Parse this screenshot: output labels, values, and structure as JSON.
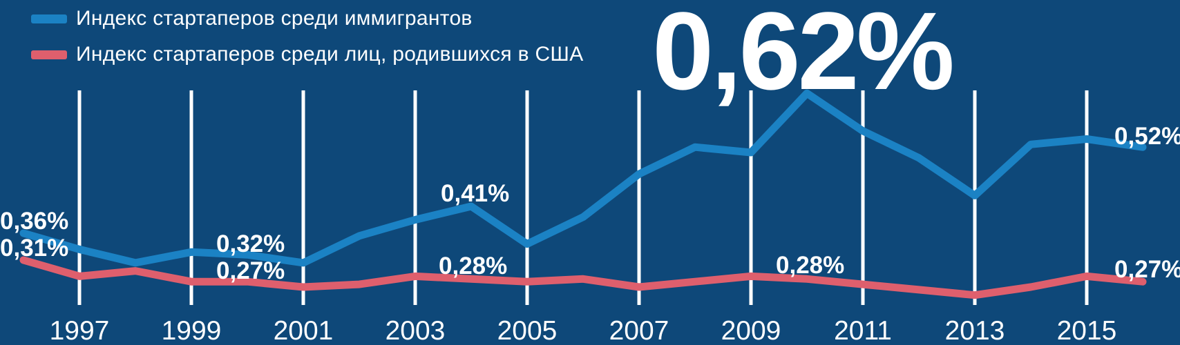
{
  "colors": {
    "background": "#0e4879",
    "gridline": "#ffffff",
    "label_text": "#ffffff",
    "immigrants_line": "#1b82c4",
    "us_born_line": "#de5f6d"
  },
  "legend": {
    "position": "top-left"
  },
  "chart_data": {
    "type": "line",
    "title": "",
    "xlabel": "",
    "ylabel": "",
    "unit": "%",
    "decimal_separator": ",",
    "grid": "vertical-only",
    "legend_position": "top-left",
    "x": [
      1996,
      1997,
      1998,
      1999,
      2000,
      2001,
      2002,
      2003,
      2004,
      2005,
      2006,
      2007,
      2008,
      2009,
      2010,
      2011,
      2012,
      2013,
      2014,
      2015,
      2016
    ],
    "x_tick_labels": [
      "1997",
      "1999",
      "2001",
      "2003",
      "2005",
      "2007",
      "2009",
      "2011",
      "2013",
      "2015"
    ],
    "ylim": [
      0.2,
      0.66
    ],
    "series": [
      {
        "name": "Индекс стартаперов среди иммигрантов",
        "color": "#1b82c4",
        "values": [
          0.36,
          0.33,
          0.305,
          0.325,
          0.32,
          0.305,
          0.355,
          0.385,
          0.41,
          0.34,
          0.39,
          0.47,
          0.52,
          0.51,
          0.62,
          0.55,
          0.5,
          0.43,
          0.525,
          0.535,
          0.52
        ]
      },
      {
        "name": "Индекс стартаперов среди лиц, родившихся в США",
        "color": "#de5f6d",
        "values": [
          0.31,
          0.28,
          0.29,
          0.27,
          0.27,
          0.26,
          0.265,
          0.28,
          0.275,
          0.27,
          0.275,
          0.26,
          0.27,
          0.28,
          0.275,
          0.265,
          0.255,
          0.245,
          0.26,
          0.28,
          0.27
        ]
      }
    ],
    "annotations": [
      {
        "text": "0,36%",
        "series": 0,
        "year": 1996,
        "emphasis": "normal"
      },
      {
        "text": "0,31%",
        "series": 1,
        "year": 1996,
        "emphasis": "normal"
      },
      {
        "text": "0,32%",
        "series": 0,
        "year": 2000,
        "emphasis": "normal"
      },
      {
        "text": "0,27%",
        "series": 1,
        "year": 2000,
        "emphasis": "normal"
      },
      {
        "text": "0,41%",
        "series": 0,
        "year": 2004,
        "emphasis": "normal"
      },
      {
        "text": "0,28%",
        "series": 1,
        "year": 2003,
        "emphasis": "normal"
      },
      {
        "text": "0,62%",
        "series": 0,
        "year": 2010,
        "emphasis": "large"
      },
      {
        "text": "0,28%",
        "series": 1,
        "year": 2009,
        "emphasis": "normal"
      },
      {
        "text": "0,52%",
        "series": 0,
        "year": 2016,
        "emphasis": "normal"
      },
      {
        "text": "0,27%",
        "series": 1,
        "year": 2016,
        "emphasis": "normal"
      }
    ]
  }
}
